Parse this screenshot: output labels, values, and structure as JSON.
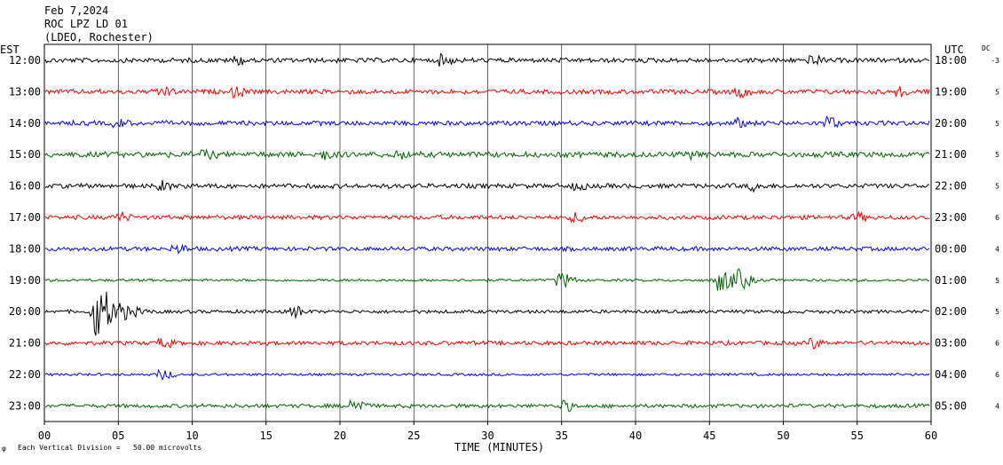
{
  "header": {
    "date": "Feb 7,2024",
    "station": "ROC LPZ LD 01",
    "network": "(LDEO, Rochester)"
  },
  "left_axis_label": "EST",
  "right_axis_label": "UTC",
  "dc_label": "DC",
  "footer": {
    "scale_note": "Each Vertical Division =   50.00 microvolts",
    "mark": "φ"
  },
  "colors": {
    "black": "#000000",
    "red": "#ff0000",
    "blue": "#0000ff",
    "green": "#006400",
    "grid": "#000000"
  },
  "chart_data": {
    "type": "line",
    "title": "ROC LPZ LD 01",
    "xlabel": "TIME (MINUTES)",
    "ylabel": "",
    "xlim": [
      0,
      60
    ],
    "x_ticks": [
      "00",
      "05",
      "10",
      "15",
      "20",
      "25",
      "30",
      "35",
      "40",
      "45",
      "50",
      "55",
      "60"
    ],
    "x_tick_values": [
      0,
      5,
      10,
      15,
      20,
      25,
      30,
      35,
      40,
      45,
      50,
      55,
      60
    ],
    "vertical_grid_every_minutes": 5,
    "rows": [
      {
        "est": "12:00",
        "utc": "18:00",
        "dc": "-3",
        "color": "black",
        "amplitude": 0.55,
        "bursts": [
          {
            "t": 13,
            "a": 1.5
          },
          {
            "t": 27,
            "a": 1.5
          },
          {
            "t": 52,
            "a": 1.5
          }
        ]
      },
      {
        "est": "13:00",
        "utc": "19:00",
        "dc": "5",
        "color": "red",
        "amplitude": 0.55,
        "bursts": [
          {
            "t": 8,
            "a": 1.6
          },
          {
            "t": 13,
            "a": 1.5
          },
          {
            "t": 47,
            "a": 1.7
          },
          {
            "t": 58,
            "a": 1.4
          }
        ]
      },
      {
        "est": "14:00",
        "utc": "20:00",
        "dc": "5",
        "color": "blue",
        "amplitude": 0.55,
        "bursts": [
          {
            "t": 5,
            "a": 1.3
          },
          {
            "t": 47,
            "a": 1.3
          },
          {
            "t": 53,
            "a": 1.8
          }
        ]
      },
      {
        "est": "15:00",
        "utc": "21:00",
        "dc": "5",
        "color": "green",
        "amplitude": 0.65,
        "bursts": [
          {
            "t": 11,
            "a": 1.4
          },
          {
            "t": 19,
            "a": 1.6
          },
          {
            "t": 24,
            "a": 1.4
          },
          {
            "t": 44,
            "a": 1.5
          }
        ]
      },
      {
        "est": "16:00",
        "utc": "22:00",
        "dc": "5",
        "color": "black",
        "amplitude": 0.55,
        "bursts": [
          {
            "t": 8,
            "a": 1.4
          },
          {
            "t": 36,
            "a": 1.3
          },
          {
            "t": 48,
            "a": 1.3
          }
        ]
      },
      {
        "est": "17:00",
        "utc": "23:00",
        "dc": "6",
        "color": "red",
        "amplitude": 0.5,
        "bursts": [
          {
            "t": 5,
            "a": 1.5
          },
          {
            "t": 36,
            "a": 1.5
          },
          {
            "t": 55,
            "a": 1.3
          }
        ]
      },
      {
        "est": "18:00",
        "utc": "00:00",
        "dc": "4",
        "color": "blue",
        "amplitude": 0.5,
        "bursts": [
          {
            "t": 9,
            "a": 1.4
          }
        ]
      },
      {
        "est": "19:00",
        "utc": "01:00",
        "dc": "5",
        "color": "green",
        "amplitude": 0.3,
        "bursts": [
          {
            "t": 35,
            "a": 2.0
          },
          {
            "t": 45.6,
            "a": 3.8
          },
          {
            "t": 47,
            "a": 2.4
          }
        ]
      },
      {
        "est": "20:00",
        "utc": "02:00",
        "dc": "5",
        "color": "black",
        "amplitude": 0.4,
        "bursts": [
          {
            "t": 3.4,
            "a": 8.0
          },
          {
            "t": 5,
            "a": 2.5
          },
          {
            "t": 17,
            "a": 1.4
          }
        ]
      },
      {
        "est": "21:00",
        "utc": "03:00",
        "dc": "6",
        "color": "red",
        "amplitude": 0.5,
        "bursts": [
          {
            "t": 8,
            "a": 1.5
          },
          {
            "t": 52,
            "a": 1.5
          }
        ]
      },
      {
        "est": "22:00",
        "utc": "04:00",
        "dc": "6",
        "color": "blue",
        "amplitude": 0.3,
        "bursts": [
          {
            "t": 8,
            "a": 1.3
          }
        ]
      },
      {
        "est": "23:00",
        "utc": "05:00",
        "dc": "4",
        "color": "green",
        "amplitude": 0.45,
        "bursts": [
          {
            "t": 21,
            "a": 2.0
          },
          {
            "t": 35,
            "a": 1.7
          }
        ]
      }
    ]
  }
}
